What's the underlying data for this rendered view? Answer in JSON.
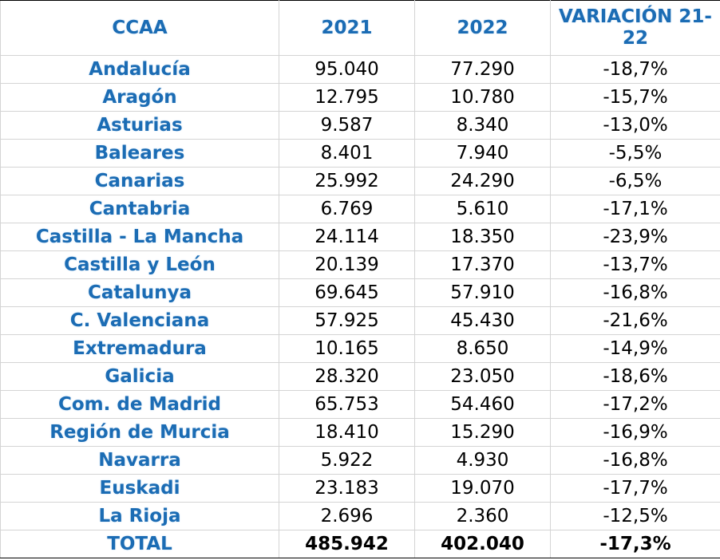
{
  "table": {
    "header": [
      "CCAA",
      "2021",
      "2022",
      "VARIACIÓN 21-22"
    ],
    "rows": [
      [
        "Andalucía",
        "95.040",
        "77.290",
        "-18,7%"
      ],
      [
        "Aragón",
        "12.795",
        "10.780",
        "-15,7%"
      ],
      [
        "Asturias",
        "9.587",
        "8.340",
        "-13,0%"
      ],
      [
        "Baleares",
        "8.401",
        "7.940",
        "-5,5%"
      ],
      [
        "Canarias",
        "25.992",
        "24.290",
        "-6,5%"
      ],
      [
        "Cantabria",
        "6.769",
        "5.610",
        "-17,1%"
      ],
      [
        "Castilla - La Mancha",
        "24.114",
        "18.350",
        "-23,9%"
      ],
      [
        "Castilla y León",
        "20.139",
        "17.370",
        "-13,7%"
      ],
      [
        "Catalunya",
        "69.645",
        "57.910",
        "-16,8%"
      ],
      [
        "C. Valenciana",
        "57.925",
        "45.430",
        "-21,6%"
      ],
      [
        "Extremadura",
        "10.165",
        "8.650",
        "-14,9%"
      ],
      [
        "Galicia",
        "28.320",
        "23.050",
        "-18,6%"
      ],
      [
        "Com. de Madrid",
        "65.753",
        "54.460",
        "-17,2%"
      ],
      [
        "Región de Murcia",
        "18.410",
        "15.290",
        "-16,9%"
      ],
      [
        "Navarra",
        "5.922",
        "4.930",
        "-16,8%"
      ],
      [
        "Euskadi",
        "23.183",
        "19.070",
        "-17,7%"
      ],
      [
        "La Rioja",
        "2.696",
        "2.360",
        "-12,5%"
      ]
    ],
    "total": [
      "TOTAL",
      "485.942",
      "402.040",
      "-17,3%"
    ]
  }
}
